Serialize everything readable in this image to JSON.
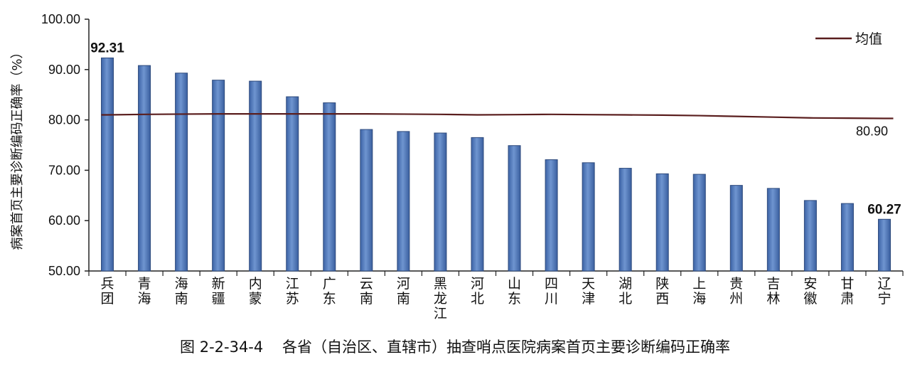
{
  "chart_data": {
    "type": "bar",
    "ylabel": "病案首页主要诊断编码正确率（%）",
    "ylim": [
      50,
      100
    ],
    "yticks": [
      "50.00",
      "60.00",
      "70.00",
      "80.00",
      "90.00",
      "100.00"
    ],
    "ytick_values": [
      50,
      60,
      70,
      80,
      90,
      100
    ],
    "categories": [
      "兵团",
      "青海",
      "海南",
      "新疆",
      "内蒙",
      "江苏",
      "广东",
      "云南",
      "河南",
      "黑龙江",
      "河北",
      "山东",
      "四川",
      "天津",
      "湖北",
      "陕西",
      "上海",
      "贵州",
      "吉林",
      "安徽",
      "甘肃",
      "辽宁"
    ],
    "values": [
      92.31,
      90.8,
      89.3,
      87.9,
      87.7,
      84.6,
      83.4,
      78.1,
      77.7,
      77.4,
      76.5,
      74.9,
      72.1,
      71.5,
      70.4,
      69.3,
      69.2,
      67.0,
      66.4,
      64.0,
      63.4,
      60.27
    ],
    "data_labels": [
      {
        "index": 0,
        "text": "92.31"
      },
      {
        "index": 21,
        "text": "60.27"
      }
    ],
    "mean_line": {
      "legend": "均值",
      "label": "80.90",
      "values": [
        81.0,
        81.1,
        81.15,
        81.2,
        81.2,
        81.2,
        81.2,
        81.2,
        81.15,
        81.1,
        81.0,
        81.05,
        81.1,
        81.05,
        81.0,
        80.95,
        80.85,
        80.7,
        80.55,
        80.4,
        80.35,
        80.3
      ]
    },
    "colors": {
      "bar": "#4a73b5",
      "bar_edge": "#2e4a7c",
      "mean_line": "#5a1e1e",
      "axis": "#222222"
    },
    "legend_position": "top-right",
    "grid": false
  },
  "caption": {
    "number": "图 2-2-34-4",
    "text": "各省（自治区、直辖市）抽查哨点医院病案首页主要诊断编码正确率"
  }
}
